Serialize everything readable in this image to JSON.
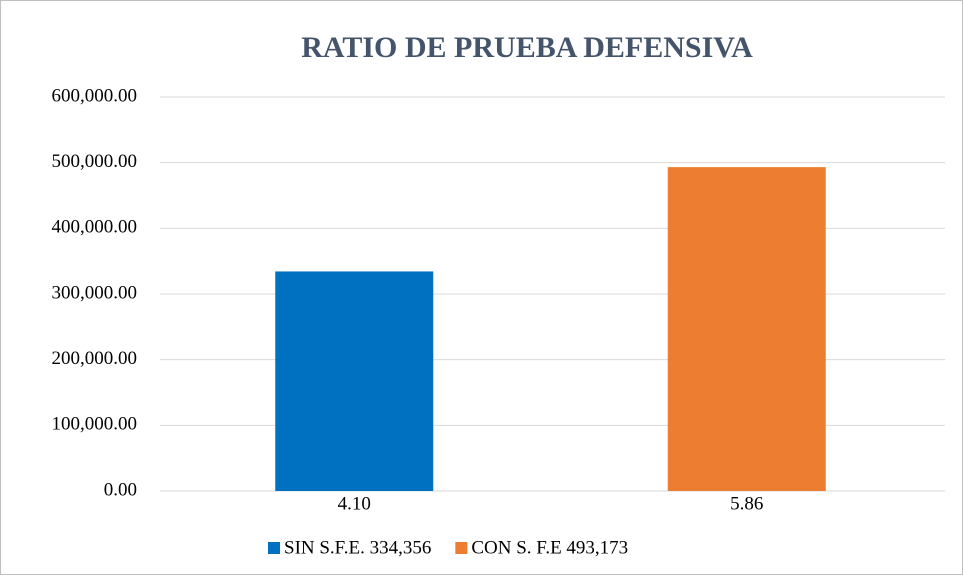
{
  "chart_data": {
    "type": "bar",
    "title": "RATIO DE PRUEBA DEFENSIVA",
    "categories": [
      "4.10",
      "5.86"
    ],
    "series": [
      {
        "name": "SIN S.F.E. 334,356",
        "color": "#0070c0",
        "values": [
          334356,
          null
        ]
      },
      {
        "name": "CON S. F.E 493,173",
        "color": "#ed7d31",
        "values": [
          null,
          493173
        ]
      }
    ],
    "ylim": [
      0,
      600000
    ],
    "yticks": [
      {
        "value": 0,
        "label": "0.00"
      },
      {
        "value": 100000,
        "label": "100,000.00"
      },
      {
        "value": 200000,
        "label": "200,000.00"
      },
      {
        "value": 300000,
        "label": "300,000.00"
      },
      {
        "value": 400000,
        "label": "400,000.00"
      },
      {
        "value": 500000,
        "label": "500,000.00"
      },
      {
        "value": 600000,
        "label": "600,000.00"
      }
    ],
    "grid": true,
    "legend": "bottom"
  }
}
